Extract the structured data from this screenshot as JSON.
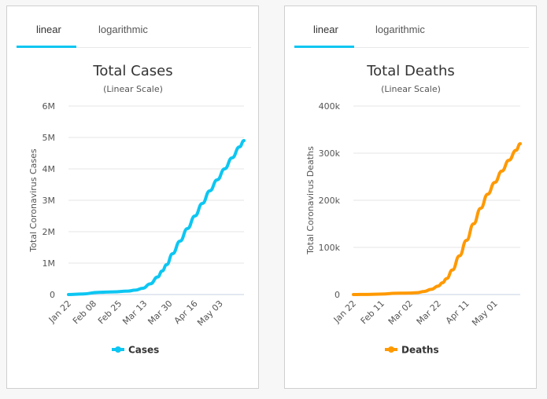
{
  "cards": [
    {
      "tabs": [
        {
          "label": "linear",
          "active": true
        },
        {
          "label": "logarithmic",
          "active": false
        }
      ],
      "color": "#0dc6f2"
    },
    {
      "tabs": [
        {
          "label": "linear",
          "active": true
        },
        {
          "label": "logarithmic",
          "active": false
        }
      ],
      "color": "#ff9900"
    }
  ],
  "chart_data": [
    {
      "type": "line",
      "title": "Total Cases",
      "subtitle": "(Linear Scale)",
      "xlabel": "",
      "ylabel": "Total Coronavirus Cases",
      "ylim": [
        0,
        6000000
      ],
      "yticks": [
        0,
        1000000,
        2000000,
        3000000,
        4000000,
        5000000,
        6000000
      ],
      "ytick_labels": [
        "0",
        "1M",
        "2M",
        "3M",
        "4M",
        "5M",
        "6M"
      ],
      "xticks_day": [
        0,
        17,
        34,
        51,
        68,
        85,
        102
      ],
      "xtick_labels": [
        "Jan 22",
        "Feb 08",
        "Feb 25",
        "Mar 13",
        "Mar 30",
        "Apr 16",
        "May 03"
      ],
      "x_day_range": [
        0,
        118
      ],
      "grid": true,
      "legend": "bottom-center",
      "series": [
        {
          "name": "Cases",
          "color": "#0dc6f2",
          "x_day": [
            0,
            10,
            20,
            30,
            40,
            45,
            50,
            55,
            60,
            63,
            66,
            70,
            75,
            80,
            85,
            90,
            95,
            100,
            105,
            110,
            115,
            118
          ],
          "values": [
            600,
            20000,
            70000,
            85000,
            110000,
            140000,
            200000,
            340000,
            560000,
            750000,
            950000,
            1300000,
            1700000,
            2100000,
            2500000,
            2900000,
            3300000,
            3650000,
            4000000,
            4350000,
            4700000,
            4900000
          ]
        }
      ]
    },
    {
      "type": "line",
      "title": "Total Deaths",
      "subtitle": "(Linear Scale)",
      "xlabel": "",
      "ylabel": "Total Coronavirus Deaths",
      "ylim": [
        0,
        400000
      ],
      "yticks": [
        0,
        100000,
        200000,
        300000,
        400000
      ],
      "ytick_labels": [
        "0",
        "100k",
        "200k",
        "300k",
        "400k"
      ],
      "xticks_day": [
        0,
        20,
        40,
        60,
        80,
        100
      ],
      "xtick_labels": [
        "Jan 22",
        "Feb 11",
        "Mar 02",
        "Mar 22",
        "Apr 11",
        "May 01"
      ],
      "x_day_range": [
        0,
        118
      ],
      "grid": true,
      "legend": "bottom-center",
      "series": [
        {
          "name": "Deaths",
          "color": "#ff9900",
          "x_day": [
            0,
            10,
            20,
            30,
            40,
            45,
            50,
            55,
            60,
            63,
            66,
            70,
            75,
            80,
            85,
            90,
            95,
            100,
            105,
            110,
            115,
            118
          ],
          "values": [
            17,
            300,
            1100,
            2800,
            3200,
            4000,
            6500,
            11000,
            18000,
            25000,
            34000,
            52000,
            82000,
            115000,
            150000,
            183000,
            213000,
            238000,
            262000,
            285000,
            306000,
            320000
          ]
        }
      ]
    }
  ]
}
